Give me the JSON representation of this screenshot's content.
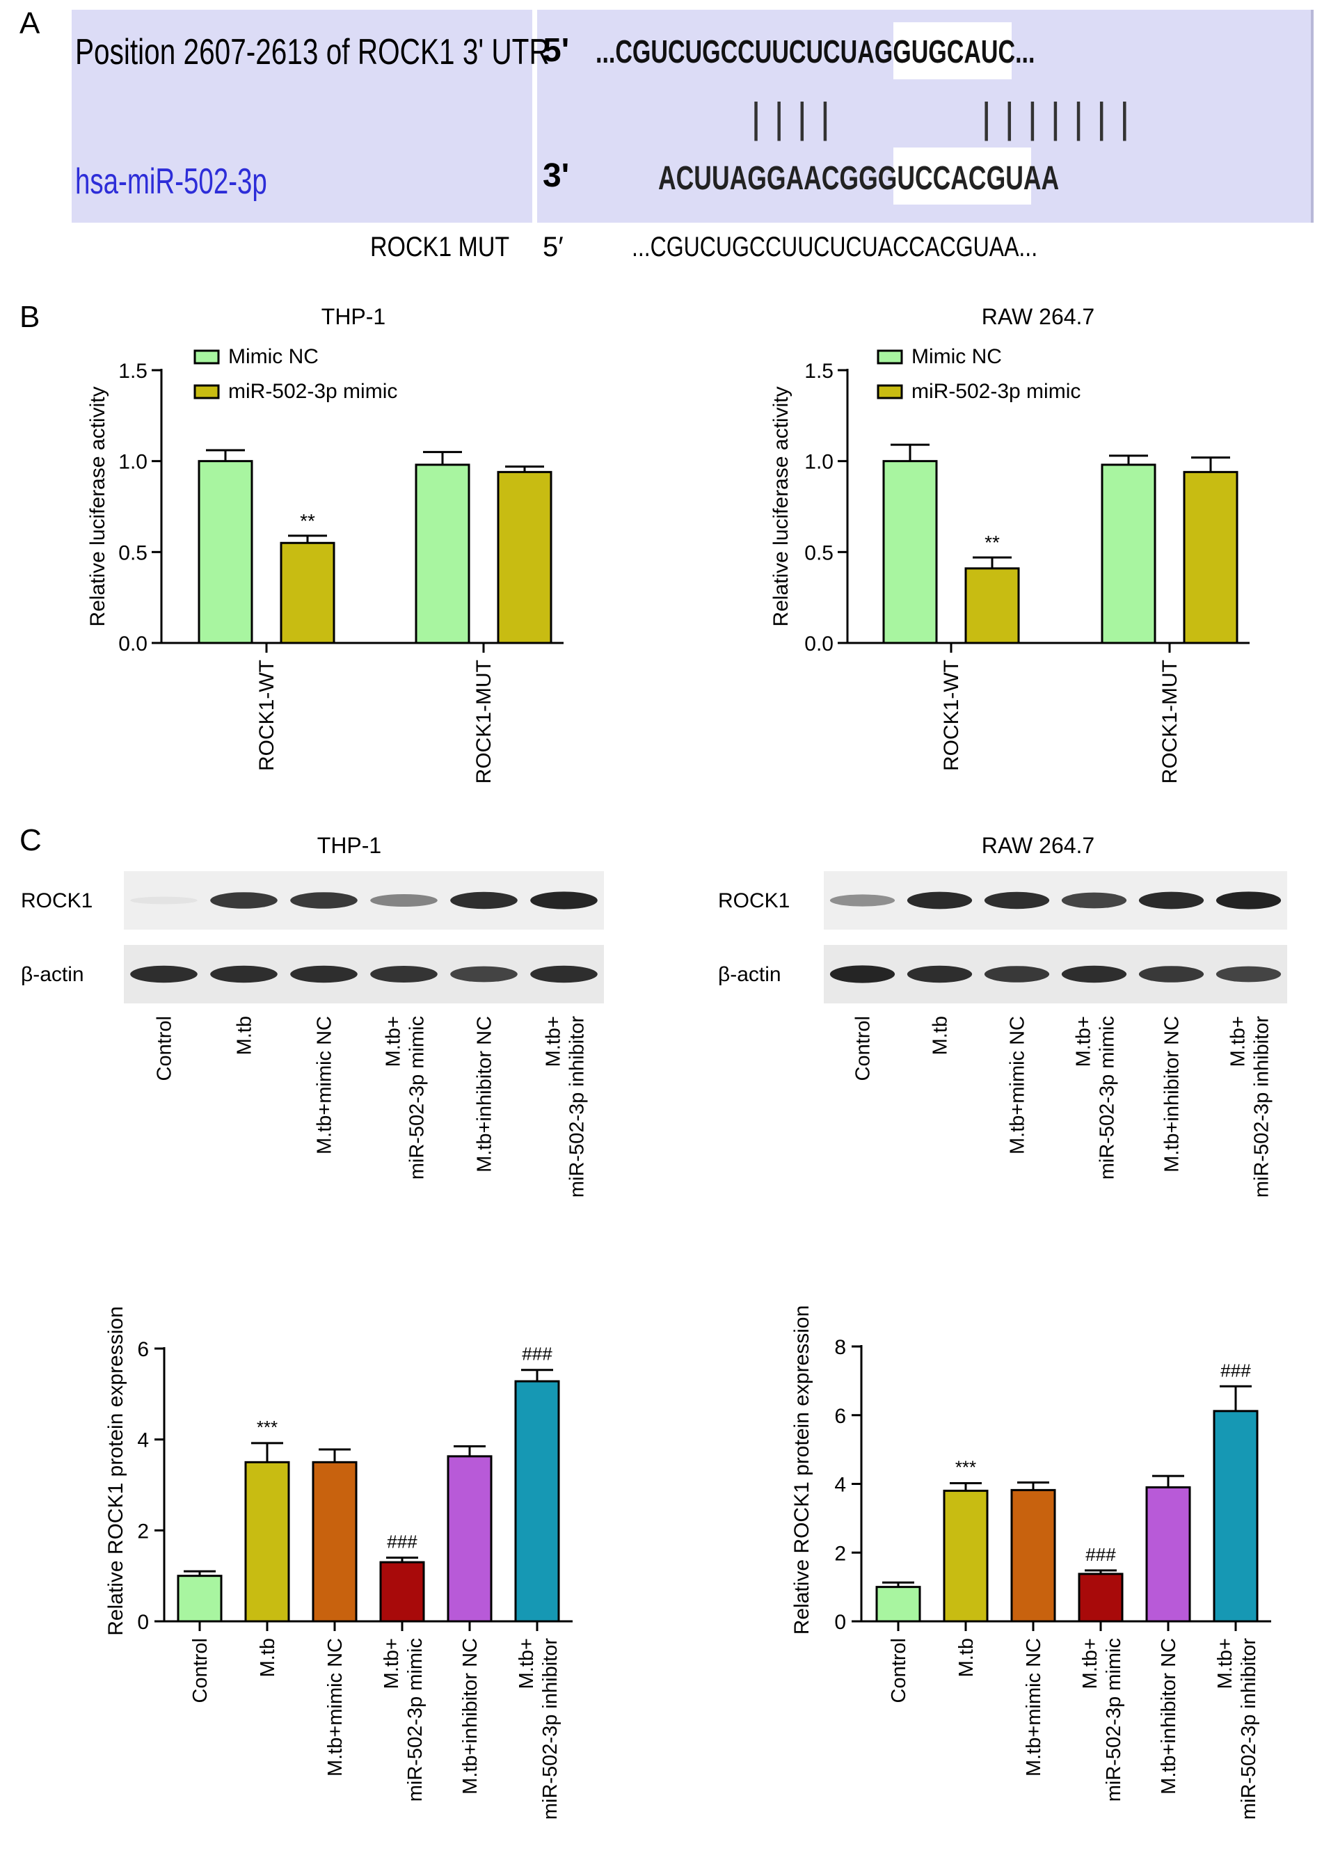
{
  "panel_labels": {
    "a": "A",
    "b": "B",
    "c": "C"
  },
  "panel_a": {
    "position_label": "Position 2607-2613 of ROCK1 3' UTR",
    "mirna_label": "hsa-miR-502-3p",
    "five_prime": "5'",
    "three_prime": "3'",
    "utr_prefix": "...CGUCUGCCUUCUCUA",
    "utr_seed": "GGUGCAUC",
    "utr_suffix": "...",
    "pairing": "||||      |||||||",
    "mirna_prefix": "ACUUAGGAACGGGU",
    "mirna_seed": "CCACGUAA",
    "mut_label": "ROCK1 MUT",
    "mut_five_prime": "5′",
    "mut_sequence": "...CGUCUGCCUUCUCUACCACGUAA..."
  },
  "colors": {
    "mimic_nc": "#a8f5a0",
    "mir_mimic": "#c8bc12",
    "control": "#a8f5a0",
    "mtb": "#c8bc12",
    "mtb_mimic_nc": "#c8620e",
    "mtb_mir_mimic": "#a80a0a",
    "mtb_inhibitor_nc": "#b85ad8",
    "mtb_mir_inhibitor": "#1698b4",
    "blot_band": "#1a1a1a",
    "panel_a_bg": "#dcdcf6",
    "mirna_text": "#2d2dd8"
  },
  "western": {
    "left_title": "THP-1",
    "right_title": "RAW 264.7",
    "rock1_label": "ROCK1",
    "actin_label": "β-actin",
    "lanes": [
      "Control",
      "M.tb",
      "M.tb+mimic NC",
      "M.tb+ miR-502-3p mimic",
      "M.tb+inhibitor NC",
      "M.tb+ miR-502-3p inhibitor"
    ],
    "lane_lines": [
      [
        "Control"
      ],
      [
        "M.tb"
      ],
      [
        "M.tb+mimic NC"
      ],
      [
        "M.tb+",
        "miR-502-3p mimic"
      ],
      [
        "M.tb+inhibitor NC"
      ],
      [
        "M.tb+",
        "miR-502-3p inhibitor"
      ]
    ],
    "left_rock1_intensity": [
      0.05,
      0.85,
      0.85,
      0.5,
      0.9,
      0.95
    ],
    "left_actin_intensity": [
      0.9,
      0.9,
      0.9,
      0.88,
      0.8,
      0.9
    ],
    "right_rock1_intensity": [
      0.45,
      0.92,
      0.9,
      0.8,
      0.92,
      0.96
    ],
    "right_actin_intensity": [
      0.95,
      0.9,
      0.85,
      0.9,
      0.85,
      0.8
    ]
  },
  "chart_data": [
    {
      "type": "bar",
      "title": "THP-1",
      "ylabel": "Relative luciferase activity",
      "categories": [
        "ROCK1-WT",
        "ROCK1-MUT"
      ],
      "ylim": [
        0,
        1.5
      ],
      "yticks": [
        "0.0",
        "0.5",
        "1.0",
        "1.5"
      ],
      "legend_position": "top-left",
      "series": [
        {
          "name": "Mimic NC",
          "values": [
            1.0,
            0.98
          ],
          "errors": [
            0.06,
            0.07
          ]
        },
        {
          "name": "miR-502-3p mimic",
          "values": [
            0.55,
            0.94
          ],
          "errors": [
            0.04,
            0.03
          ]
        }
      ],
      "annotations": [
        {
          "category": 0,
          "series": 1,
          "text": "**"
        }
      ]
    },
    {
      "type": "bar",
      "title": "RAW 264.7",
      "ylabel": "Relative luciferase activity",
      "categories": [
        "ROCK1-WT",
        "ROCK1-MUT"
      ],
      "ylim": [
        0,
        1.5
      ],
      "yticks": [
        "0.0",
        "0.5",
        "1.0",
        "1.5"
      ],
      "legend_position": "top-left",
      "series": [
        {
          "name": "Mimic NC",
          "values": [
            1.0,
            0.98
          ],
          "errors": [
            0.09,
            0.05
          ]
        },
        {
          "name": "miR-502-3p mimic",
          "values": [
            0.41,
            0.94
          ],
          "errors": [
            0.06,
            0.08
          ]
        }
      ],
      "annotations": [
        {
          "category": 0,
          "series": 1,
          "text": "**"
        }
      ]
    },
    {
      "type": "bar",
      "ylabel": "Relative ROCK1 protein expression",
      "categories": [
        "Control",
        "M.tb",
        "M.tb+mimic NC",
        "M.tb+ miR-502-3p mimic",
        "M.tb+inhibitor NC",
        "M.tb+ miR-502-3p inhibitor"
      ],
      "values": [
        1.0,
        3.5,
        3.5,
        1.3,
        3.63,
        5.28
      ],
      "errors": [
        0.1,
        0.42,
        0.28,
        0.1,
        0.22,
        0.25
      ],
      "ylim": [
        0,
        6
      ],
      "yticks": [
        "0",
        "2",
        "4",
        "6"
      ],
      "annotations": [
        "",
        "***",
        "",
        "###",
        "",
        "###"
      ]
    },
    {
      "type": "bar",
      "ylabel": "Relative ROCK1 protein expression",
      "categories": [
        "Control",
        "M.tb",
        "M.tb+mimic NC",
        "M.tb+ miR-502-3p mimic",
        "M.tb+inhibitor NC",
        "M.tb+ miR-502-3p inhibitor"
      ],
      "values": [
        1.0,
        3.8,
        3.82,
        1.38,
        3.9,
        6.12
      ],
      "errors": [
        0.13,
        0.22,
        0.22,
        0.1,
        0.33,
        0.72
      ],
      "ylim": [
        0,
        8
      ],
      "yticks": [
        "0",
        "2",
        "4",
        "6",
        "8"
      ],
      "annotations": [
        "",
        "***",
        "",
        "###",
        "",
        "###"
      ]
    }
  ]
}
